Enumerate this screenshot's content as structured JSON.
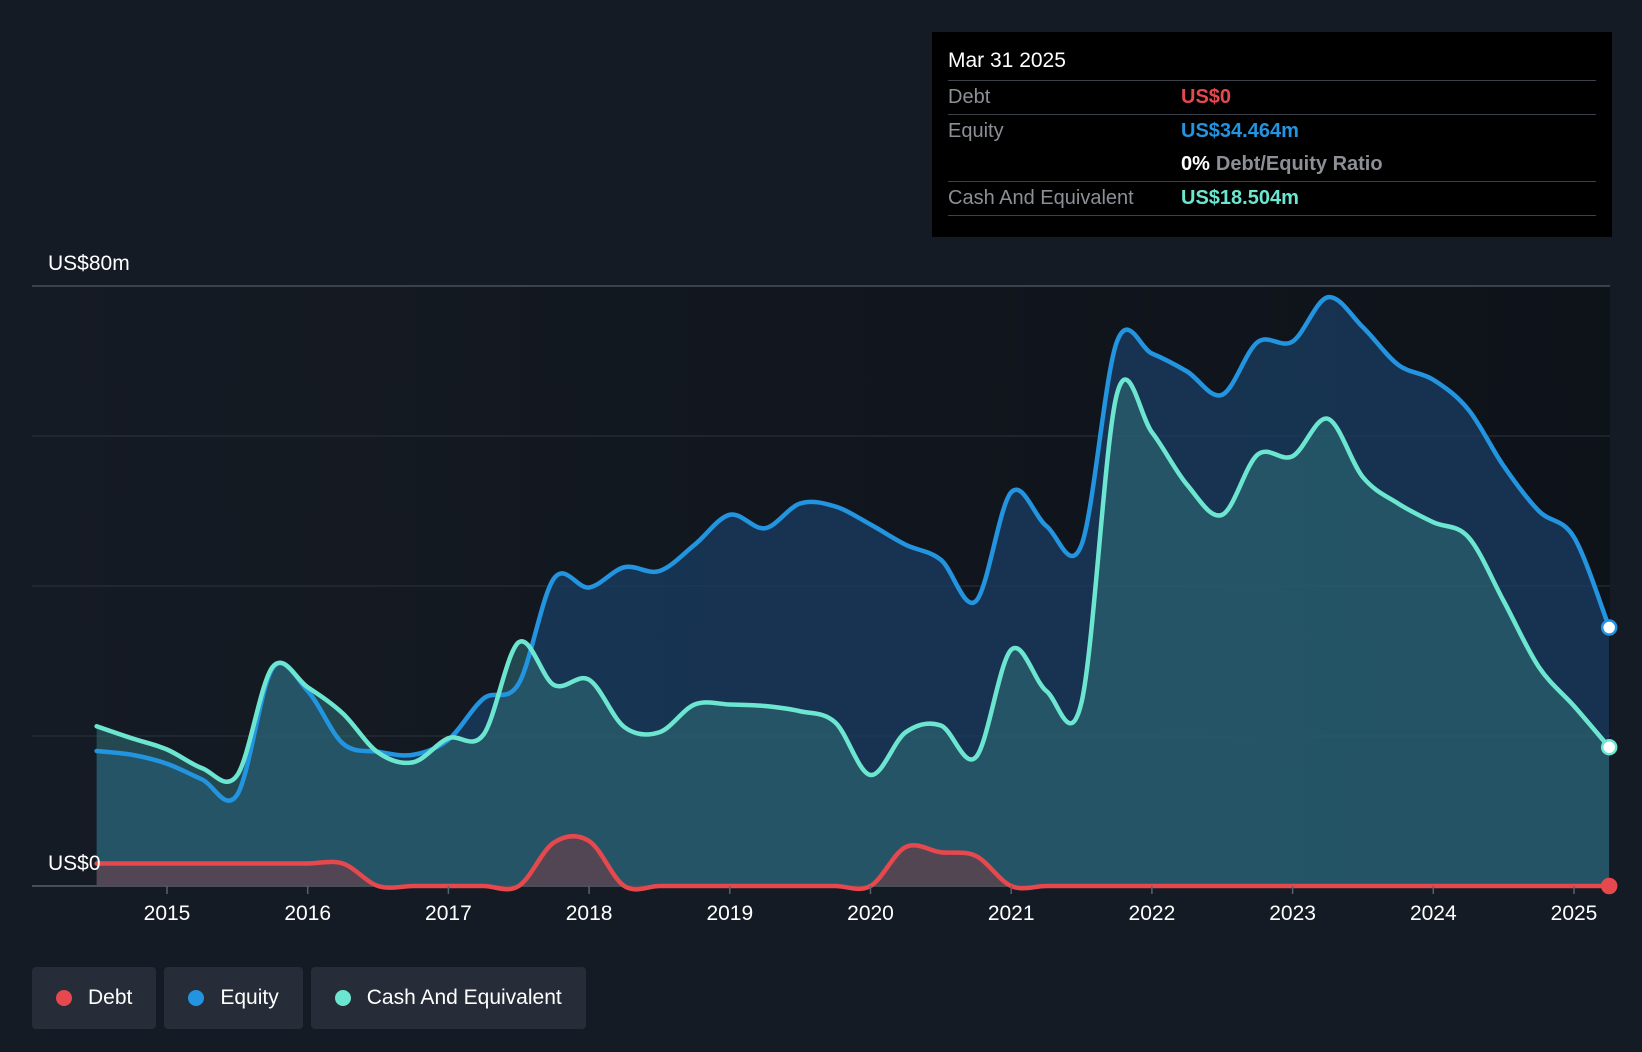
{
  "tooltip": {
    "date": "Mar 31 2025",
    "debt_label": "Debt",
    "debt_value": "US$0",
    "equity_label": "Equity",
    "equity_value": "US$34.464m",
    "ratio_pct": "0%",
    "ratio_label": "Debt/Equity Ratio",
    "cash_label": "Cash And Equivalent",
    "cash_value": "US$18.504m"
  },
  "legend": {
    "items": [
      {
        "label": "Debt",
        "color": "#e5484d"
      },
      {
        "label": "Equity",
        "color": "#2394df"
      },
      {
        "label": "Cash And Equivalent",
        "color": "#6ce6d0"
      }
    ]
  },
  "chart_data": {
    "type": "area",
    "y_unit": "US$ millions",
    "ylim": [
      0,
      80
    ],
    "y_tick_labels": [
      "US$0",
      "US$80m"
    ],
    "gridlines": [
      0,
      20,
      40,
      60,
      80
    ],
    "xlim": [
      2014.5,
      2025.25
    ],
    "x_ticks": [
      2015,
      2016,
      2017,
      2018,
      2019,
      2020,
      2021,
      2022,
      2023,
      2024,
      2025
    ],
    "x_tick_labels": [
      "2015",
      "2016",
      "2017",
      "2018",
      "2019",
      "2020",
      "2021",
      "2022",
      "2023",
      "2024",
      "2025"
    ],
    "colors": {
      "debt": "#e5484d",
      "equity": "#2394df",
      "cash": "#6ce6d0"
    },
    "series": [
      {
        "name": "Equity",
        "key": "equity",
        "x": [
          2014.5,
          2014.75,
          2015.0,
          2015.25,
          2015.5,
          2015.75,
          2016.0,
          2016.25,
          2016.5,
          2016.75,
          2017.0,
          2017.25,
          2017.5,
          2017.75,
          2018.0,
          2018.25,
          2018.5,
          2018.75,
          2019.0,
          2019.25,
          2019.5,
          2019.75,
          2020.0,
          2020.25,
          2020.5,
          2020.75,
          2021.0,
          2021.25,
          2021.5,
          2021.75,
          2022.0,
          2022.25,
          2022.5,
          2022.75,
          2023.0,
          2023.25,
          2023.5,
          2023.75,
          2024.0,
          2024.25,
          2024.5,
          2024.75,
          2025.0,
          2025.25
        ],
        "y": [
          18,
          17.5,
          16.3,
          14.2,
          12.2,
          29,
          26,
          19,
          17.9,
          17.5,
          19.5,
          25,
          27,
          41,
          39.8,
          42.5,
          42,
          45.5,
          49.5,
          47.7,
          51,
          50.6,
          48.2,
          45.5,
          43.5,
          38,
          52.5,
          48,
          45.5,
          72.5,
          71,
          68.6,
          65.5,
          72.5,
          72.6,
          78.5,
          74.5,
          69.5,
          67.5,
          63.5,
          56,
          50,
          46.5,
          34.464
        ]
      },
      {
        "name": "Cash And Equivalent",
        "key": "cash",
        "x": [
          2014.5,
          2014.75,
          2015.0,
          2015.25,
          2015.5,
          2015.75,
          2016.0,
          2016.25,
          2016.5,
          2016.75,
          2017.0,
          2017.25,
          2017.5,
          2017.75,
          2018.0,
          2018.25,
          2018.5,
          2018.75,
          2019.0,
          2019.25,
          2019.5,
          2019.75,
          2020.0,
          2020.25,
          2020.5,
          2020.75,
          2021.0,
          2021.25,
          2021.5,
          2021.75,
          2022.0,
          2022.25,
          2022.5,
          2022.75,
          2023.0,
          2023.25,
          2023.5,
          2023.75,
          2024.0,
          2024.25,
          2024.5,
          2024.75,
          2025.0,
          2025.25
        ],
        "y": [
          21.3,
          19.7,
          18.2,
          15.7,
          14.8,
          29.2,
          26.5,
          23,
          17.8,
          16.5,
          19.7,
          20.2,
          32.5,
          26.8,
          27.5,
          21.2,
          20.5,
          24.2,
          24.2,
          24.0,
          23.3,
          21.8,
          14.8,
          20.5,
          21.4,
          17.2,
          31.5,
          26,
          24.5,
          65.5,
          60.5,
          53.5,
          49.5,
          57.5,
          57.3,
          62.3,
          54.5,
          51,
          48.5,
          46.5,
          38,
          29.2,
          24,
          18.504
        ]
      },
      {
        "name": "Debt",
        "key": "debt",
        "x": [
          2014.5,
          2014.75,
          2015.0,
          2015.25,
          2015.5,
          2015.75,
          2016.0,
          2016.25,
          2016.5,
          2016.75,
          2017.0,
          2017.25,
          2017.5,
          2017.75,
          2018.0,
          2018.25,
          2018.5,
          2018.75,
          2019.0,
          2019.25,
          2019.5,
          2019.75,
          2020.0,
          2020.25,
          2020.5,
          2020.75,
          2021.0,
          2021.25,
          2021.5,
          2021.75,
          2022.0,
          2022.25,
          2022.5,
          2022.75,
          2023.0,
          2023.25,
          2023.5,
          2023.75,
          2024.0,
          2024.25,
          2024.5,
          2024.75,
          2025.0,
          2025.25
        ],
        "y": [
          3,
          3,
          3,
          3,
          3,
          3,
          3,
          3,
          0,
          0,
          0,
          0,
          0,
          5.8,
          6.0,
          0,
          0,
          0,
          0,
          0,
          0,
          0,
          0,
          5.2,
          4.5,
          4.0,
          0,
          0,
          0,
          0,
          0,
          0,
          0,
          0,
          0,
          0,
          0,
          0,
          0,
          0,
          0,
          0,
          0,
          0
        ]
      }
    ]
  }
}
